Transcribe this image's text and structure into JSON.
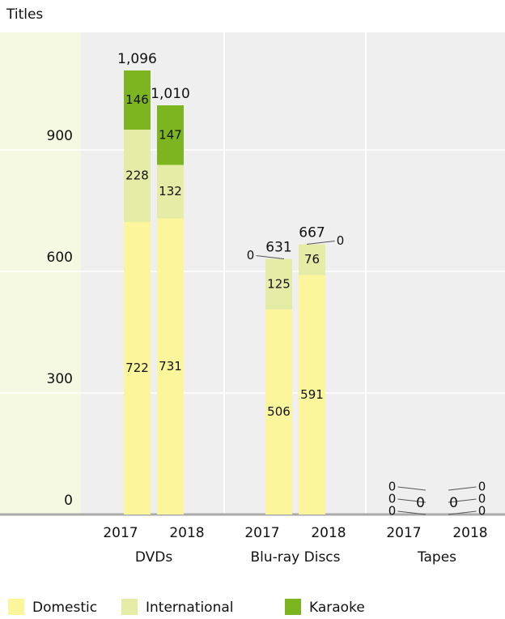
{
  "chart_data": {
    "type": "stacked_bar",
    "y_axis_label": "Titles",
    "groups": [
      "DVDs",
      "Blu-ray Discs",
      "Tapes"
    ],
    "categories": [
      "2017",
      "2018",
      "2017",
      "2018",
      "2017",
      "2018"
    ],
    "series": [
      {
        "name": "Domestic",
        "color": "#fbf59c",
        "values": [
          722,
          731,
          506,
          591,
          0,
          0
        ]
      },
      {
        "name": "International",
        "color": "#e5eca6",
        "values": [
          228,
          132,
          125,
          76,
          0,
          0
        ]
      },
      {
        "name": "Karaoke",
        "color": "#7db520",
        "values": [
          146,
          147,
          0,
          0,
          0,
          0
        ]
      }
    ],
    "totals": [
      1096,
      1010,
      631,
      667,
      0,
      0
    ],
    "totals_value_labels": [
      "1,096",
      "1,010",
      "631",
      "667",
      "0",
      "0"
    ],
    "ylim": [
      0,
      1200
    ],
    "yticks": [
      0,
      300,
      600,
      900
    ],
    "grid": true
  }
}
